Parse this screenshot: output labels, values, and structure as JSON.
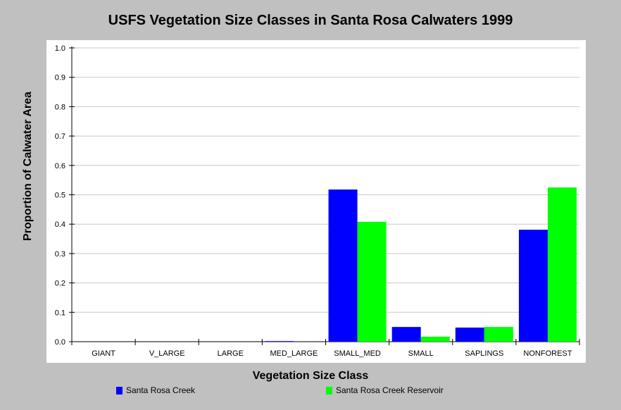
{
  "chart_data": {
    "type": "bar",
    "title": "USFS Vegetation Size Classes in Santa Rosa Calwaters 1999",
    "xlabel": "Vegetation Size Class",
    "ylabel": "Proportion of Calwater Area",
    "categories": [
      "GIANT",
      "V_LARGE",
      "LARGE",
      "MED_LARGE",
      "SMALL_MED",
      "SMALL",
      "SAPLINGS",
      "NONFOREST"
    ],
    "yticks": [
      "0.0",
      "0.1",
      "0.2",
      "0.3",
      "0.4",
      "0.5",
      "0.6",
      "0.7",
      "0.8",
      "0.9",
      "1.0"
    ],
    "ylim": [
      0,
      1.0
    ],
    "grid": true,
    "legend_position": "bottom",
    "series": [
      {
        "name": "Santa Rosa Creek",
        "color": "#0000ff",
        "values": [
          0,
          0,
          0,
          0.002,
          0.518,
          0.05,
          0.048,
          0.381
        ]
      },
      {
        "name": "Santa Rosa Creek Reservoir",
        "color": "#00ff00",
        "values": [
          0,
          0,
          0,
          0,
          0.408,
          0.017,
          0.05,
          0.525
        ]
      }
    ]
  }
}
